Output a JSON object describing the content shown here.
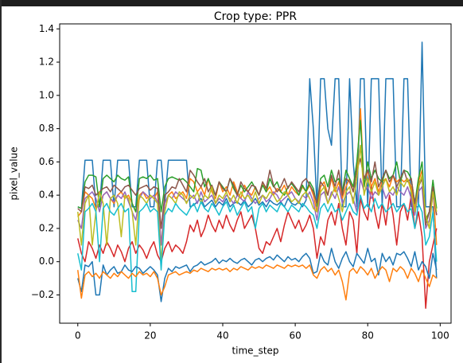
{
  "chart_data": {
    "type": "line",
    "title": "Crop type: PPR",
    "xlabel": "time_step",
    "ylabel": "pixel_value",
    "x": [
      0,
      1,
      2,
      3,
      4,
      5,
      6,
      7,
      8,
      9,
      10,
      11,
      12,
      13,
      14,
      15,
      16,
      17,
      18,
      19,
      20,
      21,
      22,
      23,
      24,
      25,
      26,
      27,
      28,
      29,
      30,
      31,
      32,
      33,
      34,
      35,
      36,
      37,
      38,
      39,
      40,
      41,
      42,
      43,
      44,
      45,
      46,
      47,
      48,
      49,
      50,
      51,
      52,
      53,
      54,
      55,
      56,
      57,
      58,
      59,
      60,
      61,
      62,
      63,
      64,
      65,
      66,
      67,
      68,
      69,
      70,
      71,
      72,
      73,
      74,
      75,
      76,
      77,
      78,
      79,
      80,
      81,
      82,
      83,
      84,
      85,
      86,
      87,
      88,
      89,
      90,
      91,
      92,
      93,
      94,
      95,
      96,
      97,
      98,
      99
    ],
    "xlim": [
      -5,
      103
    ],
    "xticks": [
      0,
      20,
      40,
      60,
      80,
      100
    ],
    "ylim": [
      -0.37,
      1.43
    ],
    "yticks": [
      {
        "value": -0.2,
        "label": "−0.2"
      },
      {
        "value": 0.0,
        "label": "0.0"
      },
      0.2,
      0.4,
      0.6,
      0.8,
      {
        "value": 1.0,
        "label": "1.0"
      },
      1.2,
      1.4
    ],
    "series": [
      {
        "color": "#1f77b4",
        "values": [
          0.33,
          0.32,
          0.61,
          0.61,
          0.61,
          0.33,
          0.33,
          0.61,
          0.61,
          0.61,
          0.33,
          0.61,
          0.61,
          0.61,
          0.61,
          0.33,
          0.33,
          0.61,
          0.61,
          0.61,
          0.33,
          0.33,
          0.61,
          0.61,
          0.35,
          0.61,
          0.61,
          0.61,
          0.61,
          0.61,
          0.61,
          0.33,
          0.34,
          0.36,
          0.38,
          0.33,
          0.35,
          0.37,
          0.33,
          0.36,
          0.34,
          0.38,
          0.33,
          0.35,
          0.36,
          0.34,
          0.37,
          0.33,
          0.35,
          0.38,
          0.34,
          0.36,
          0.33,
          0.37,
          0.35,
          0.34,
          0.36,
          0.33,
          0.38,
          0.35,
          0.34,
          0.36,
          0.33,
          0.37,
          1.1,
          0.8,
          0.33,
          1.1,
          1.1,
          0.8,
          0.7,
          1.1,
          1.1,
          0.33,
          0.33,
          1.1,
          0.6,
          0.33,
          1.1,
          1.1,
          0.33,
          1.1,
          1.1,
          1.1,
          0.33,
          1.1,
          1.1,
          1.1,
          0.33,
          0.33,
          1.1,
          1.1,
          0.33,
          0.33,
          0.33,
          1.32,
          0.33,
          0.33,
          0.33,
          -0.1
        ]
      },
      {
        "color": "#ff7f0e",
        "values": [
          0.27,
          0.3,
          0.42,
          0.4,
          0.38,
          0.32,
          0.35,
          0.4,
          0.42,
          0.38,
          0.35,
          0.4,
          0.42,
          0.38,
          0.4,
          0.35,
          0.3,
          0.4,
          0.42,
          0.38,
          0.4,
          0.38,
          0.42,
          0.1,
          0.35,
          0.4,
          0.42,
          0.38,
          0.4,
          0.42,
          0.38,
          0.5,
          0.48,
          0.42,
          0.45,
          0.4,
          0.5,
          0.42,
          0.38,
          0.48,
          0.42,
          0.45,
          0.4,
          0.48,
          0.42,
          0.38,
          0.46,
          0.42,
          0.4,
          0.45,
          0.4,
          0.48,
          0.42,
          0.45,
          0.4,
          0.44,
          0.42,
          0.46,
          0.4,
          0.45,
          0.42,
          0.4,
          0.45,
          0.42,
          0.46,
          0.4,
          0.3,
          0.45,
          0.48,
          0.4,
          0.5,
          0.42,
          0.48,
          0.38,
          0.45,
          0.5,
          0.42,
          0.55,
          0.92,
          0.45,
          0.55,
          0.45,
          0.5,
          0.42,
          0.48,
          0.5,
          0.45,
          0.52,
          0.48,
          0.5,
          0.48,
          0.5,
          0.45,
          0.32,
          0.48,
          0.55,
          0.25,
          0.3,
          0.45,
          0.1
        ]
      },
      {
        "color": "#2ca02c",
        "values": [
          0.33,
          0.32,
          0.48,
          0.52,
          0.52,
          0.51,
          0.33,
          0.5,
          0.52,
          0.5,
          0.48,
          0.52,
          0.5,
          0.49,
          0.51,
          0.35,
          0.3,
          0.5,
          0.51,
          0.5,
          0.52,
          0.49,
          0.5,
          0.3,
          0.45,
          0.5,
          0.51,
          0.5,
          0.49,
          0.5,
          0.48,
          0.45,
          0.42,
          0.56,
          0.55,
          0.45,
          0.5,
          0.44,
          0.4,
          0.48,
          0.45,
          0.42,
          0.5,
          0.44,
          0.4,
          0.46,
          0.42,
          0.45,
          0.48,
          0.44,
          0.4,
          0.46,
          0.42,
          0.5,
          0.45,
          0.48,
          0.42,
          0.4,
          0.45,
          0.47,
          0.44,
          0.4,
          0.46,
          0.42,
          0.48,
          0.44,
          0.34,
          0.5,
          0.52,
          0.45,
          0.55,
          0.48,
          0.5,
          0.42,
          0.55,
          0.5,
          0.45,
          0.6,
          0.85,
          0.45,
          0.6,
          0.5,
          0.55,
          0.5,
          0.48,
          0.55,
          0.5,
          0.52,
          0.6,
          0.48,
          0.55,
          0.54,
          0.5,
          0.35,
          0.5,
          0.6,
          0.25,
          0.3,
          0.49,
          0.32
        ]
      },
      {
        "color": "#d62728",
        "values": [
          0.14,
          0.05,
          0.0,
          0.12,
          0.08,
          0.02,
          0.1,
          0.05,
          0.12,
          0.08,
          0.03,
          0.1,
          0.06,
          0.0,
          0.08,
          0.12,
          0.05,
          0.1,
          0.07,
          0.02,
          0.08,
          0.12,
          0.04,
          0.0,
          0.08,
          0.12,
          0.06,
          0.1,
          0.08,
          0.05,
          0.12,
          0.22,
          0.18,
          0.25,
          0.15,
          0.2,
          0.28,
          0.22,
          0.18,
          0.25,
          0.2,
          0.28,
          0.22,
          0.18,
          0.25,
          0.3,
          0.2,
          0.24,
          0.28,
          0.2,
          0.08,
          0.05,
          0.12,
          0.1,
          0.15,
          0.2,
          0.12,
          0.22,
          0.3,
          0.25,
          0.2,
          0.25,
          0.18,
          0.22,
          0.28,
          0.2,
          0.02,
          0.15,
          0.1,
          0.25,
          0.3,
          0.22,
          0.35,
          0.2,
          0.1,
          0.3,
          0.25,
          0.05,
          0.38,
          0.3,
          0.25,
          0.45,
          0.3,
          0.2,
          0.35,
          0.22,
          0.4,
          0.28,
          0.1,
          0.3,
          0.35,
          0.25,
          0.4,
          0.2,
          0.3,
          0.15,
          -0.28,
          0.0,
          0.1,
          0.2
        ]
      },
      {
        "color": "#9467bd",
        "values": [
          0.25,
          0.2,
          0.38,
          0.4,
          0.42,
          0.38,
          0.3,
          0.4,
          0.42,
          0.38,
          0.36,
          0.4,
          0.38,
          0.42,
          0.36,
          0.3,
          0.25,
          0.38,
          0.42,
          0.4,
          0.38,
          0.4,
          0.36,
          0.1,
          0.35,
          0.4,
          0.38,
          0.42,
          0.4,
          0.38,
          0.36,
          0.38,
          0.4,
          0.35,
          0.42,
          0.36,
          0.38,
          0.4,
          0.35,
          0.38,
          0.36,
          0.4,
          0.38,
          0.35,
          0.4,
          0.38,
          0.36,
          0.42,
          0.38,
          0.35,
          0.38,
          0.4,
          0.36,
          0.38,
          0.42,
          0.4,
          0.36,
          0.38,
          0.4,
          0.42,
          0.38,
          0.36,
          0.4,
          0.38,
          0.42,
          0.36,
          0.25,
          0.4,
          0.42,
          0.35,
          0.42,
          0.38,
          0.45,
          0.35,
          0.4,
          0.42,
          0.38,
          0.3,
          0.5,
          0.42,
          0.45,
          0.38,
          0.42,
          0.4,
          0.45,
          0.38,
          0.42,
          0.4,
          0.45,
          0.42,
          0.4,
          0.45,
          0.38,
          0.28,
          0.42,
          0.45,
          0.2,
          0.25,
          0.4,
          0.28
        ]
      },
      {
        "color": "#8c564b",
        "values": [
          0.32,
          0.3,
          0.45,
          0.44,
          0.46,
          0.4,
          0.42,
          0.44,
          0.45,
          0.42,
          0.46,
          0.44,
          0.42,
          0.45,
          0.46,
          0.43,
          0.4,
          0.44,
          0.45,
          0.46,
          0.43,
          0.45,
          0.44,
          0.2,
          0.4,
          0.42,
          0.45,
          0.44,
          0.5,
          0.46,
          0.42,
          0.55,
          0.52,
          0.48,
          0.45,
          0.5,
          0.42,
          0.46,
          0.4,
          0.48,
          0.44,
          0.42,
          0.5,
          0.46,
          0.4,
          0.48,
          0.44,
          0.42,
          0.46,
          0.45,
          0.4,
          0.48,
          0.44,
          0.55,
          0.46,
          0.42,
          0.45,
          0.5,
          0.44,
          0.48,
          0.45,
          0.42,
          0.48,
          0.5,
          0.46,
          0.42,
          0.35,
          0.48,
          0.45,
          0.4,
          0.52,
          0.45,
          0.55,
          0.4,
          0.5,
          0.48,
          0.42,
          0.55,
          0.62,
          0.5,
          0.55,
          0.48,
          0.6,
          0.45,
          0.5,
          0.55,
          0.48,
          0.52,
          0.45,
          0.5,
          0.55,
          0.48,
          0.5,
          0.35,
          0.45,
          0.5,
          0.22,
          0.3,
          0.45,
          0.28
        ]
      },
      {
        "color": "#bcbd22",
        "values": [
          0.3,
          0.1,
          0.35,
          0.4,
          0.1,
          0.3,
          0.42,
          0.35,
          0.1,
          0.38,
          0.4,
          0.35,
          0.15,
          0.4,
          0.38,
          0.3,
          0.1,
          0.4,
          0.38,
          0.35,
          0.4,
          0.38,
          0.35,
          0.0,
          0.3,
          0.4,
          0.38,
          0.35,
          0.42,
          0.4,
          0.35,
          0.4,
          0.38,
          0.42,
          0.35,
          0.4,
          0.38,
          0.45,
          0.35,
          0.4,
          0.38,
          0.42,
          0.36,
          0.4,
          0.35,
          0.42,
          0.38,
          0.4,
          0.36,
          0.42,
          0.35,
          0.4,
          0.38,
          0.42,
          0.4,
          0.36,
          0.38,
          0.42,
          0.4,
          0.36,
          0.38,
          0.35,
          0.4,
          0.42,
          0.38,
          0.32,
          0.3,
          0.42,
          0.45,
          0.35,
          0.4,
          0.45,
          0.38,
          0.3,
          0.42,
          0.45,
          0.35,
          0.5,
          0.7,
          0.4,
          0.5,
          0.42,
          0.48,
          0.4,
          0.45,
          0.5,
          0.42,
          0.45,
          0.4,
          0.48,
          0.45,
          0.5,
          0.42,
          0.3,
          0.45,
          0.52,
          0.28,
          0.2,
          0.42,
          0.3
        ]
      },
      {
        "color": "#17becf",
        "values": [
          0.05,
          -0.05,
          0.3,
          0.32,
          0.35,
          0.3,
          0.0,
          0.32,
          0.35,
          0.3,
          0.28,
          0.32,
          0.35,
          0.3,
          0.32,
          -0.18,
          -0.18,
          0.3,
          0.32,
          0.35,
          0.3,
          0.32,
          0.3,
          -0.05,
          0.28,
          0.32,
          0.3,
          0.35,
          0.32,
          0.3,
          0.28,
          0.32,
          0.35,
          0.3,
          0.36,
          0.32,
          0.3,
          0.35,
          0.32,
          0.28,
          0.33,
          0.36,
          0.3,
          0.34,
          0.28,
          0.32,
          0.36,
          0.3,
          0.33,
          0.2,
          0.32,
          0.35,
          0.3,
          0.34,
          0.32,
          0.3,
          0.35,
          0.33,
          0.3,
          0.34,
          0.32,
          0.3,
          0.35,
          0.33,
          0.3,
          0.28,
          0.2,
          0.32,
          0.35,
          0.3,
          0.35,
          0.3,
          0.32,
          0.25,
          0.3,
          0.35,
          0.3,
          0.28,
          0.4,
          0.32,
          0.35,
          0.3,
          0.38,
          0.32,
          0.35,
          0.3,
          0.32,
          0.35,
          0.3,
          0.33,
          0.35,
          0.3,
          0.32,
          0.2,
          0.35,
          0.3,
          0.1,
          0.15,
          0.3,
          0.0
        ]
      },
      {
        "color": "#1f77b4",
        "values": [
          -0.1,
          -0.18,
          -0.02,
          -0.03,
          0.0,
          -0.2,
          -0.2,
          -0.02,
          -0.08,
          -0.05,
          -0.03,
          -0.07,
          -0.06,
          -0.02,
          -0.05,
          -0.06,
          -0.03,
          -0.04,
          -0.07,
          -0.05,
          -0.03,
          -0.05,
          -0.08,
          -0.24,
          -0.1,
          -0.04,
          -0.06,
          -0.03,
          -0.04,
          -0.03,
          -0.02,
          -0.06,
          -0.03,
          -0.02,
          0.0,
          -0.02,
          -0.01,
          0.0,
          0.02,
          -0.01,
          0.01,
          0.0,
          0.02,
          0.0,
          -0.01,
          0.01,
          0.02,
          0.0,
          -0.02,
          0.01,
          0.02,
          0.0,
          0.02,
          0.03,
          0.01,
          0.04,
          0.02,
          0.0,
          0.03,
          0.01,
          0.02,
          0.0,
          0.03,
          0.05,
          0.02,
          -0.07,
          -0.06,
          0.05,
          0.0,
          -0.02,
          0.08,
          0.0,
          -0.04,
          0.02,
          0.06,
          0.0,
          -0.03,
          0.05,
          0.02,
          -0.01,
          0.08,
          0.0,
          0.02,
          -0.08,
          0.05,
          0.0,
          0.03,
          -0.02,
          0.05,
          0.04,
          0.06,
          0.02,
          -0.03,
          0.06,
          -0.05,
          0.0,
          -0.03,
          -0.1,
          0.05,
          -0.05
        ]
      },
      {
        "color": "#ff7f0e",
        "values": [
          -0.05,
          -0.22,
          -0.08,
          -0.06,
          -0.09,
          -0.07,
          -0.1,
          -0.06,
          -0.08,
          -0.1,
          -0.07,
          -0.09,
          -0.06,
          -0.08,
          -0.1,
          -0.07,
          -0.09,
          -0.06,
          -0.08,
          -0.07,
          -0.09,
          -0.06,
          -0.1,
          -0.2,
          -0.15,
          -0.08,
          -0.07,
          -0.06,
          -0.08,
          -0.07,
          -0.06,
          -0.07,
          -0.05,
          -0.06,
          -0.04,
          -0.05,
          -0.06,
          -0.04,
          -0.05,
          -0.04,
          -0.05,
          -0.04,
          -0.06,
          -0.04,
          -0.05,
          -0.03,
          -0.04,
          -0.05,
          -0.03,
          -0.04,
          -0.03,
          -0.04,
          -0.02,
          -0.03,
          -0.04,
          -0.02,
          -0.03,
          -0.04,
          -0.02,
          -0.03,
          -0.02,
          -0.03,
          -0.02,
          -0.04,
          -0.02,
          -0.08,
          -0.1,
          -0.05,
          -0.03,
          -0.06,
          -0.04,
          -0.08,
          -0.05,
          -0.12,
          -0.23,
          -0.06,
          -0.04,
          -0.07,
          -0.03,
          -0.05,
          -0.08,
          -0.04,
          -0.1,
          -0.06,
          -0.03,
          -0.05,
          -0.12,
          -0.04,
          -0.06,
          -0.03,
          -0.05,
          -0.1,
          -0.04,
          -0.07,
          -0.12,
          -0.05,
          -0.1,
          -0.15,
          -0.08,
          -0.1
        ]
      }
    ]
  }
}
